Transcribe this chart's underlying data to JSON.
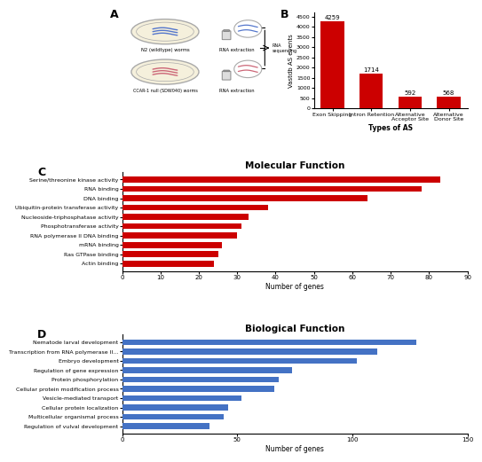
{
  "bar_chart": {
    "categories": [
      "Exon Skipping",
      "Intron Retention",
      "Alternative\nAcceptor Site",
      "Alternative\nDonor Site"
    ],
    "values": [
      4259,
      1714,
      592,
      568
    ],
    "color": "#cc0000",
    "xlabel": "Types of AS",
    "ylabel": "Vastdb AS events",
    "ylim": [
      0,
      4700
    ],
    "yticks": [
      0,
      500,
      1000,
      1500,
      2000,
      2500,
      3000,
      3500,
      4000,
      4500
    ],
    "title": ""
  },
  "mol_func": {
    "categories": [
      "Serine/threonine kinase activity",
      "RNA binding",
      "DNA binding",
      "Ubiquitin-protein transferase activity",
      "Nucleoside-triphosphatase activity",
      "Phosphotransferase activity",
      "RNA polymerase II DNA binding",
      "mRNA binding",
      "Ras GTPase binding",
      "Actin binding"
    ],
    "values": [
      83,
      78,
      64,
      38,
      33,
      31,
      30,
      26,
      25,
      24
    ],
    "color": "#cc0000",
    "title": "Molecular Function",
    "xlabel": "Number of genes",
    "xlim": [
      0,
      90
    ],
    "xticks": [
      0,
      10,
      20,
      30,
      40,
      50,
      60,
      70,
      80,
      90
    ]
  },
  "bio_func": {
    "categories": [
      "Nematode larval development",
      "Transcription from RNA polymerase II...",
      "Embryo development",
      "Regulation of gene expression",
      "Protein phosphorylation",
      "Cellular protein modification process",
      "Vesicle-mediated transport",
      "Cellular protein localization",
      "Multicellular organismal process",
      "Regulation of vulval development"
    ],
    "values": [
      128,
      111,
      102,
      74,
      68,
      66,
      52,
      46,
      44,
      38
    ],
    "color": "#4472c4",
    "title": "Biological Function",
    "xlabel": "Number of genes",
    "xlim": [
      0,
      150
    ],
    "xticks": [
      0,
      50,
      100,
      150
    ]
  },
  "bg_color": "#ffffff"
}
